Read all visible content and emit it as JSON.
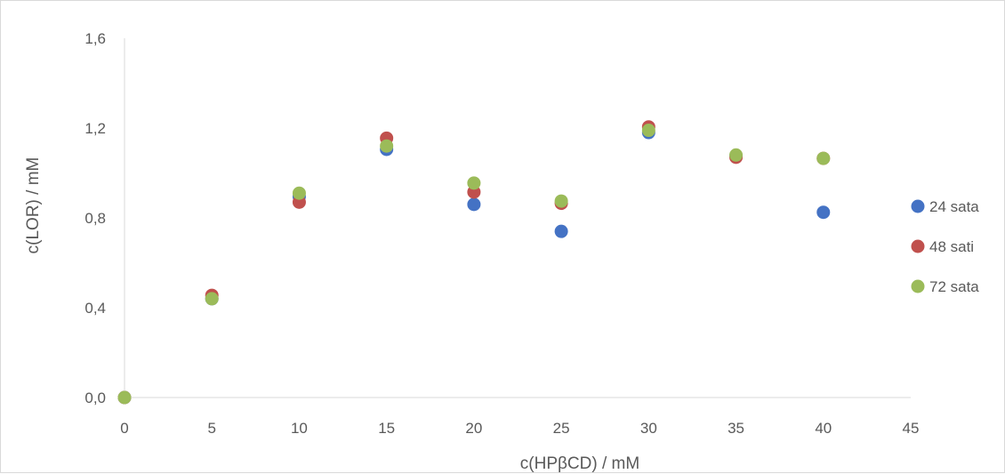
{
  "chart_data": {
    "type": "scatter",
    "xlabel": "c(HPβCD) / mM",
    "ylabel": "c(LOR) / mM",
    "xlim": [
      0,
      45
    ],
    "ylim": [
      0,
      1.6
    ],
    "x_ticks": [
      "0",
      "5",
      "10",
      "15",
      "20",
      "25",
      "30",
      "35",
      "40",
      "45"
    ],
    "x_tick_values": [
      0,
      5,
      10,
      15,
      20,
      25,
      30,
      35,
      40,
      45
    ],
    "y_ticks": [
      "0,0",
      "0,4",
      "0,8",
      "1,2",
      "1,6"
    ],
    "y_tick_values": [
      0,
      0.4,
      0.8,
      1.2,
      1.6
    ],
    "grid": false,
    "legend_position": "right",
    "series": [
      {
        "name": "24 sata",
        "color": "#4472C4",
        "x": [
          0,
          5,
          10,
          15,
          20,
          25,
          30,
          35,
          40
        ],
        "y": [
          0.0,
          0.44,
          0.895,
          1.105,
          0.86,
          0.74,
          1.18,
          1.075,
          0.825
        ]
      },
      {
        "name": "48 sati",
        "color": "#C0504D",
        "x": [
          0,
          5,
          10,
          15,
          20,
          25,
          30,
          35,
          40
        ],
        "y": [
          0.0,
          0.455,
          0.87,
          1.155,
          0.915,
          0.865,
          1.205,
          1.07,
          1.065
        ]
      },
      {
        "name": "72 sata",
        "color": "#9BBB59",
        "x": [
          0,
          5,
          10,
          15,
          20,
          25,
          30,
          35,
          40
        ],
        "y": [
          0.0,
          0.44,
          0.91,
          1.12,
          0.955,
          0.875,
          1.19,
          1.08,
          1.065
        ]
      }
    ]
  }
}
